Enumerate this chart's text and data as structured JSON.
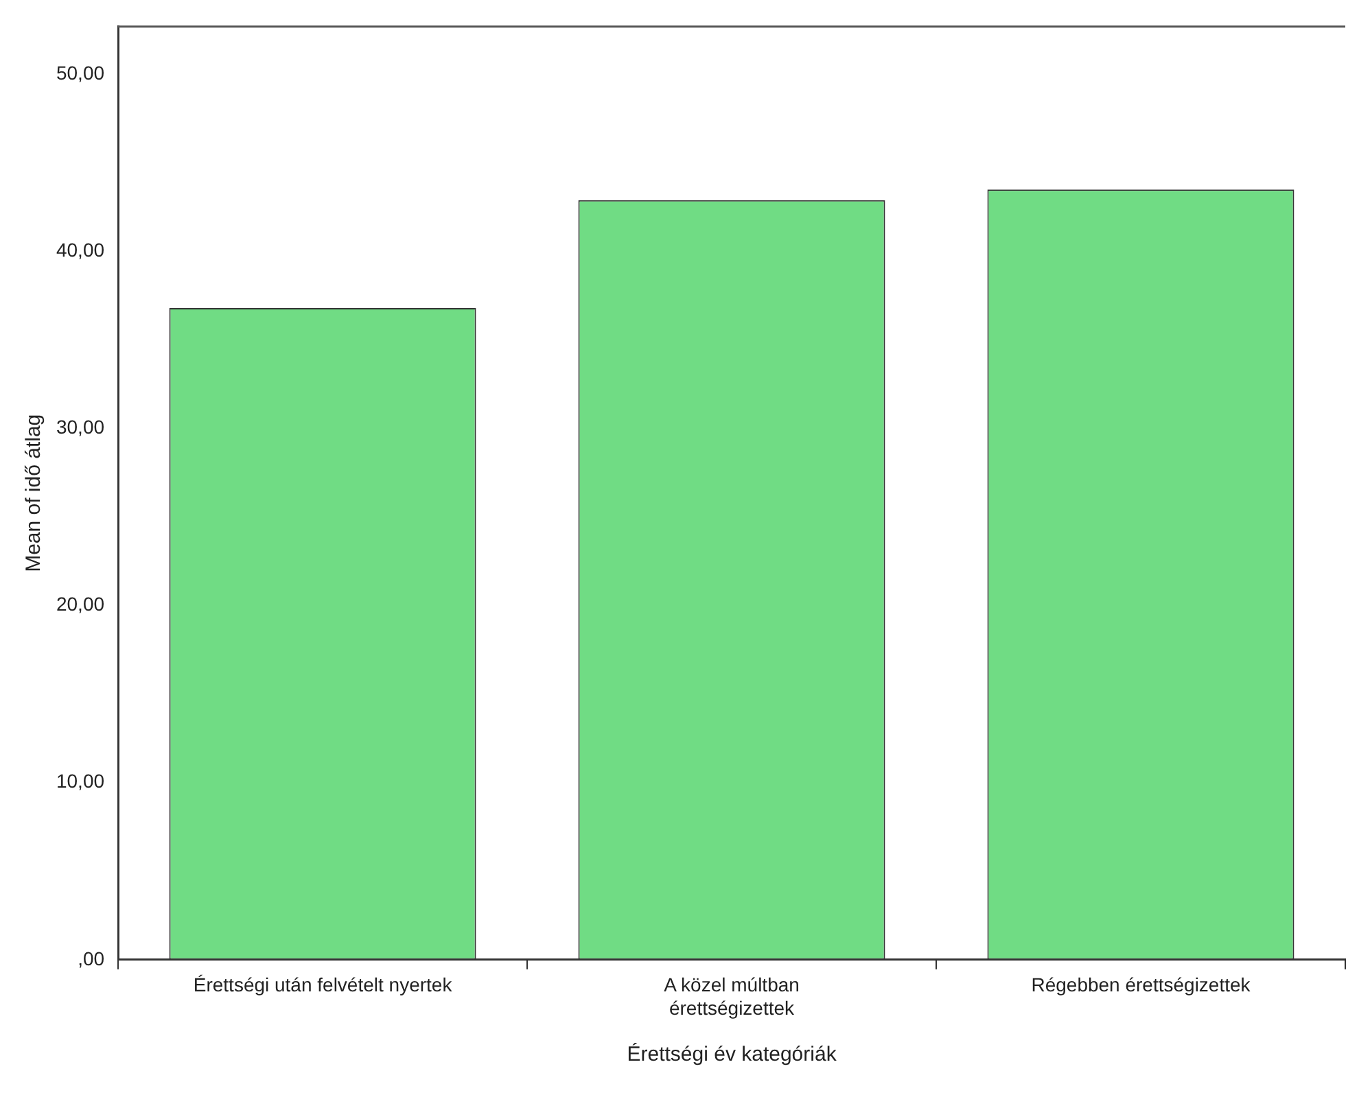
{
  "chart_data": {
    "type": "bar",
    "xlabel": "Érettségi év kategóriák",
    "ylabel": "Mean of idő átlag",
    "categories": [
      "Érettségi után felvételt nyertek",
      "A közel múltban érettségizettek",
      "Régebben érettségizettek"
    ],
    "values": [
      36.8,
      42.9,
      43.5
    ],
    "color": "#70dc84",
    "ylim": [
      0,
      52.7
    ],
    "yticks": [
      {
        "value": 0,
        "label": ",00"
      },
      {
        "value": 10,
        "label": "10,00"
      },
      {
        "value": 20,
        "label": "20,00"
      },
      {
        "value": 30,
        "label": "30,00"
      },
      {
        "value": 40,
        "label": "40,00"
      },
      {
        "value": 50,
        "label": "50,00"
      }
    ],
    "grid": false,
    "legend": false
  }
}
